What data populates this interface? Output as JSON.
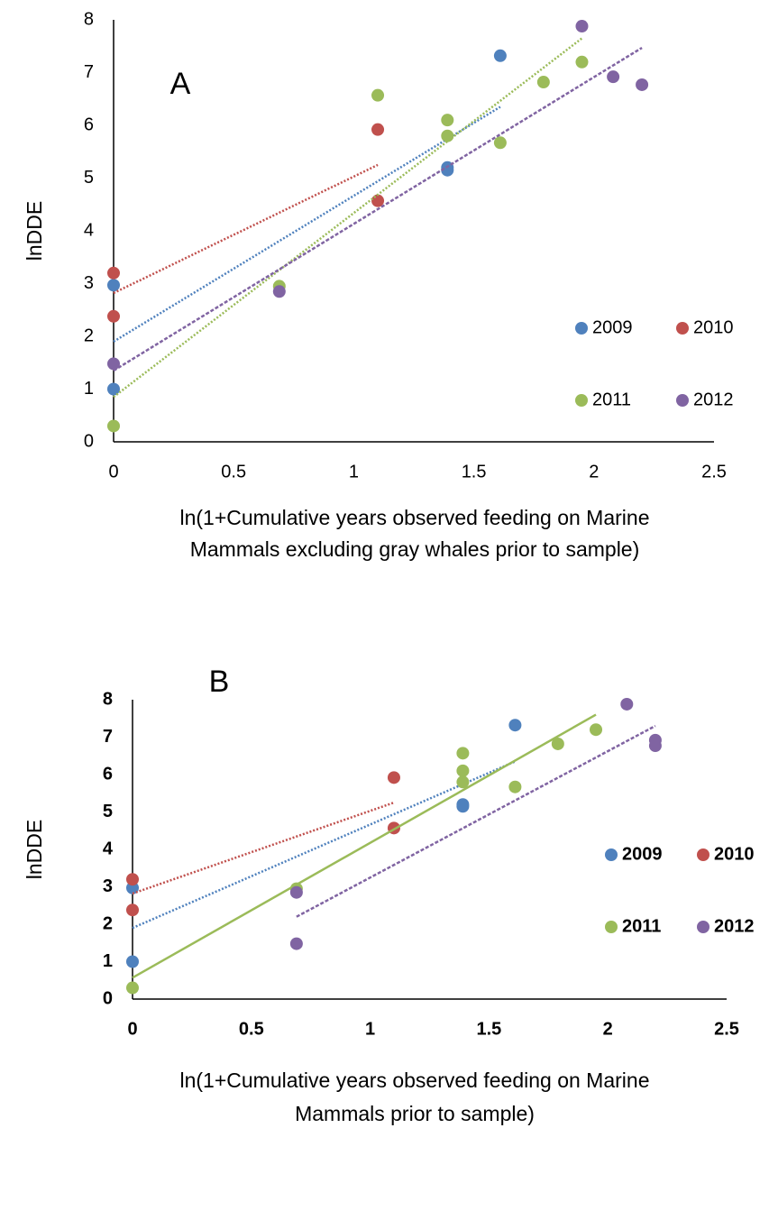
{
  "chart_data": [
    {
      "type": "scatter",
      "annotation": "A",
      "ylabel": "lnDDE",
      "xlabel": [
        "ln(1+Cumulative years observed feeding on Marine",
        "Mammals excluding gray whales prior to sample)"
      ],
      "xlim": [
        0,
        2.5
      ],
      "xticks": [
        0,
        0.5,
        1,
        1.5,
        2,
        2.5
      ],
      "ylim": [
        0,
        8
      ],
      "yticks": [
        0,
        1,
        2,
        3,
        4,
        5,
        6,
        7,
        8
      ],
      "grid": false,
      "tick_font_weight": "normal",
      "legend": "right",
      "series": [
        {
          "name": "2009",
          "color": "#4f81bd",
          "x": [
            0,
            0,
            1.39,
            1.39,
            1.61
          ],
          "values": [
            2.97,
            1.0,
            5.2,
            5.15,
            7.32
          ],
          "trend": {
            "style": "dotted",
            "x": [
              0,
              1.61
            ],
            "y": [
              1.9,
              6.35
            ]
          }
        },
        {
          "name": "2010",
          "color": "#c0504d",
          "x": [
            0,
            0,
            1.1,
            1.1
          ],
          "values": [
            3.2,
            2.38,
            5.92,
            4.57
          ],
          "trend": {
            "style": "dotted",
            "x": [
              0,
              1.1
            ],
            "y": [
              2.82,
              5.25
            ]
          }
        },
        {
          "name": "2011",
          "color": "#9bbb59",
          "x": [
            0,
            0.69,
            1.1,
            1.39,
            1.39,
            1.61,
            1.79,
            1.95
          ],
          "values": [
            0.3,
            2.95,
            6.57,
            6.1,
            5.8,
            5.67,
            6.82,
            7.2
          ],
          "trend": {
            "style": "dotted",
            "x": [
              0,
              1.95
            ],
            "y": [
              0.85,
              7.65
            ]
          }
        },
        {
          "name": "2012",
          "color": "#8064a2",
          "x": [
            0,
            0.69,
            1.95,
            2.08,
            2.2
          ],
          "values": [
            1.48,
            2.85,
            7.88,
            6.92,
            6.77
          ],
          "trend": {
            "style": "dashed",
            "x": [
              0,
              2.2
            ],
            "y": [
              1.35,
              7.47
            ]
          }
        }
      ]
    },
    {
      "type": "scatter",
      "annotation": "B",
      "ylabel": "lnDDE",
      "xlabel": [
        "ln(1+Cumulative years observed feeding on Marine",
        "Mammals prior to sample)"
      ],
      "xlim": [
        0,
        2.5
      ],
      "xticks": [
        0,
        0.5,
        1,
        1.5,
        2,
        2.5
      ],
      "ylim": [
        0,
        8
      ],
      "yticks": [
        0,
        1,
        2,
        3,
        4,
        5,
        6,
        7,
        8
      ],
      "grid": false,
      "tick_font_weight": "bold",
      "legend": "right",
      "series": [
        {
          "name": "2009",
          "color": "#4f81bd",
          "x": [
            0,
            0,
            1.39,
            1.39,
            1.61
          ],
          "values": [
            2.97,
            1.0,
            5.2,
            5.15,
            7.32
          ],
          "trend": {
            "style": "dotted",
            "x": [
              0,
              1.61
            ],
            "y": [
              1.9,
              6.35
            ]
          }
        },
        {
          "name": "2010",
          "color": "#c0504d",
          "x": [
            0,
            0,
            1.1,
            1.1
          ],
          "values": [
            3.2,
            2.38,
            5.92,
            4.57
          ],
          "trend": {
            "style": "dotted",
            "x": [
              0,
              1.1
            ],
            "y": [
              2.82,
              5.25
            ]
          }
        },
        {
          "name": "2011",
          "color": "#9bbb59",
          "x": [
            0,
            0.69,
            1.39,
            1.39,
            1.39,
            1.61,
            1.79,
            1.95
          ],
          "values": [
            0.3,
            2.95,
            6.57,
            6.1,
            5.8,
            5.67,
            6.82,
            7.2
          ],
          "trend": {
            "style": "solid",
            "x": [
              0,
              1.95
            ],
            "y": [
              0.57,
              7.6
            ]
          }
        },
        {
          "name": "2012",
          "color": "#8064a2",
          "x": [
            0.69,
            0.69,
            2.08,
            2.2,
            2.2
          ],
          "values": [
            2.85,
            1.48,
            7.88,
            6.92,
            6.77
          ],
          "trend": {
            "style": "dashed",
            "x": [
              0.69,
              2.2
            ],
            "y": [
              2.2,
              7.3
            ]
          }
        }
      ]
    }
  ]
}
